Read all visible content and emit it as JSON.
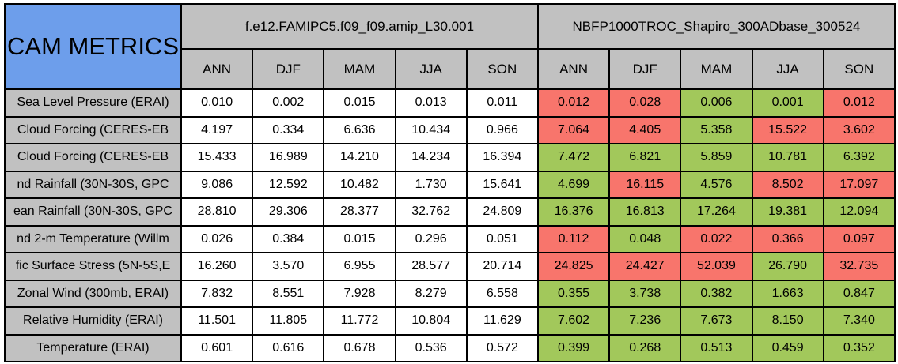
{
  "chart_data": {
    "type": "table",
    "title": "CAM METRICS",
    "models": [
      "f.e12.FAMIPC5.f09_f09.amip_L30.001",
      "NBFP1000TROC_Shapiro_300ADbase_300524"
    ],
    "seasons": [
      "ANN",
      "DJF",
      "MAM",
      "JJA",
      "SON"
    ],
    "colors": {
      "title_bg": "#6D9EEB",
      "header_bg": "#C1C1C1",
      "model1_cell_bg": "#FFFFFF",
      "better": "#A2C85B",
      "worse": "#F8756C",
      "border": "#000000"
    },
    "rows": [
      {
        "label": "Sea Level Pressure (ERAI)",
        "model1": [
          "0.010",
          "0.002",
          "0.015",
          "0.013",
          "0.011"
        ],
        "model2": [
          "0.012",
          "0.028",
          "0.006",
          "0.001",
          "0.012"
        ],
        "model2_flags": [
          "worse",
          "worse",
          "better",
          "better",
          "worse"
        ]
      },
      {
        "label": "Cloud Forcing (CERES-EB",
        "model1": [
          "4.197",
          "0.334",
          "6.636",
          "10.434",
          "0.966"
        ],
        "model2": [
          "7.064",
          "4.405",
          "5.358",
          "15.522",
          "3.602"
        ],
        "model2_flags": [
          "worse",
          "worse",
          "better",
          "worse",
          "worse"
        ]
      },
      {
        "label": "Cloud Forcing (CERES-EB",
        "model1": [
          "15.433",
          "16.989",
          "14.210",
          "14.234",
          "16.394"
        ],
        "model2": [
          "7.472",
          "6.821",
          "5.859",
          "10.781",
          "6.392"
        ],
        "model2_flags": [
          "better",
          "better",
          "better",
          "better",
          "better"
        ]
      },
      {
        "label": "nd Rainfall (30N-30S, GPC",
        "model1": [
          "9.086",
          "12.592",
          "10.482",
          "1.730",
          "15.641"
        ],
        "model2": [
          "4.699",
          "16.115",
          "4.576",
          "8.502",
          "17.097"
        ],
        "model2_flags": [
          "better",
          "worse",
          "better",
          "worse",
          "worse"
        ]
      },
      {
        "label": "ean Rainfall (30N-30S, GPC",
        "model1": [
          "28.810",
          "29.306",
          "28.377",
          "32.762",
          "24.809"
        ],
        "model2": [
          "16.376",
          "16.813",
          "17.264",
          "19.381",
          "12.094"
        ],
        "model2_flags": [
          "better",
          "better",
          "better",
          "better",
          "better"
        ]
      },
      {
        "label": "nd 2-m Temperature (Willm",
        "model1": [
          "0.026",
          "0.384",
          "0.015",
          "0.296",
          "0.051"
        ],
        "model2": [
          "0.112",
          "0.048",
          "0.022",
          "0.366",
          "0.097"
        ],
        "model2_flags": [
          "worse",
          "better",
          "worse",
          "worse",
          "worse"
        ]
      },
      {
        "label": "fic Surface Stress (5N-5S,E",
        "model1": [
          "16.260",
          "3.570",
          "6.955",
          "28.577",
          "20.714"
        ],
        "model2": [
          "24.825",
          "24.427",
          "52.039",
          "26.790",
          "32.735"
        ],
        "model2_flags": [
          "worse",
          "worse",
          "worse",
          "better",
          "worse"
        ]
      },
      {
        "label": "Zonal Wind (300mb, ERAI)",
        "model1": [
          "7.832",
          "8.551",
          "7.928",
          "8.279",
          "6.558"
        ],
        "model2": [
          "0.355",
          "3.738",
          "0.382",
          "1.663",
          "0.847"
        ],
        "model2_flags": [
          "better",
          "better",
          "better",
          "better",
          "better"
        ]
      },
      {
        "label": "Relative Humidity (ERAI)",
        "model1": [
          "11.501",
          "11.805",
          "11.772",
          "10.804",
          "11.629"
        ],
        "model2": [
          "7.602",
          "7.236",
          "7.673",
          "8.150",
          "7.340"
        ],
        "model2_flags": [
          "better",
          "better",
          "better",
          "better",
          "better"
        ]
      },
      {
        "label": "Temperature (ERAI)",
        "model1": [
          "0.601",
          "0.616",
          "0.678",
          "0.536",
          "0.572"
        ],
        "model2": [
          "0.399",
          "0.268",
          "0.513",
          "0.459",
          "0.352"
        ],
        "model2_flags": [
          "better",
          "better",
          "better",
          "better",
          "better"
        ]
      }
    ]
  }
}
